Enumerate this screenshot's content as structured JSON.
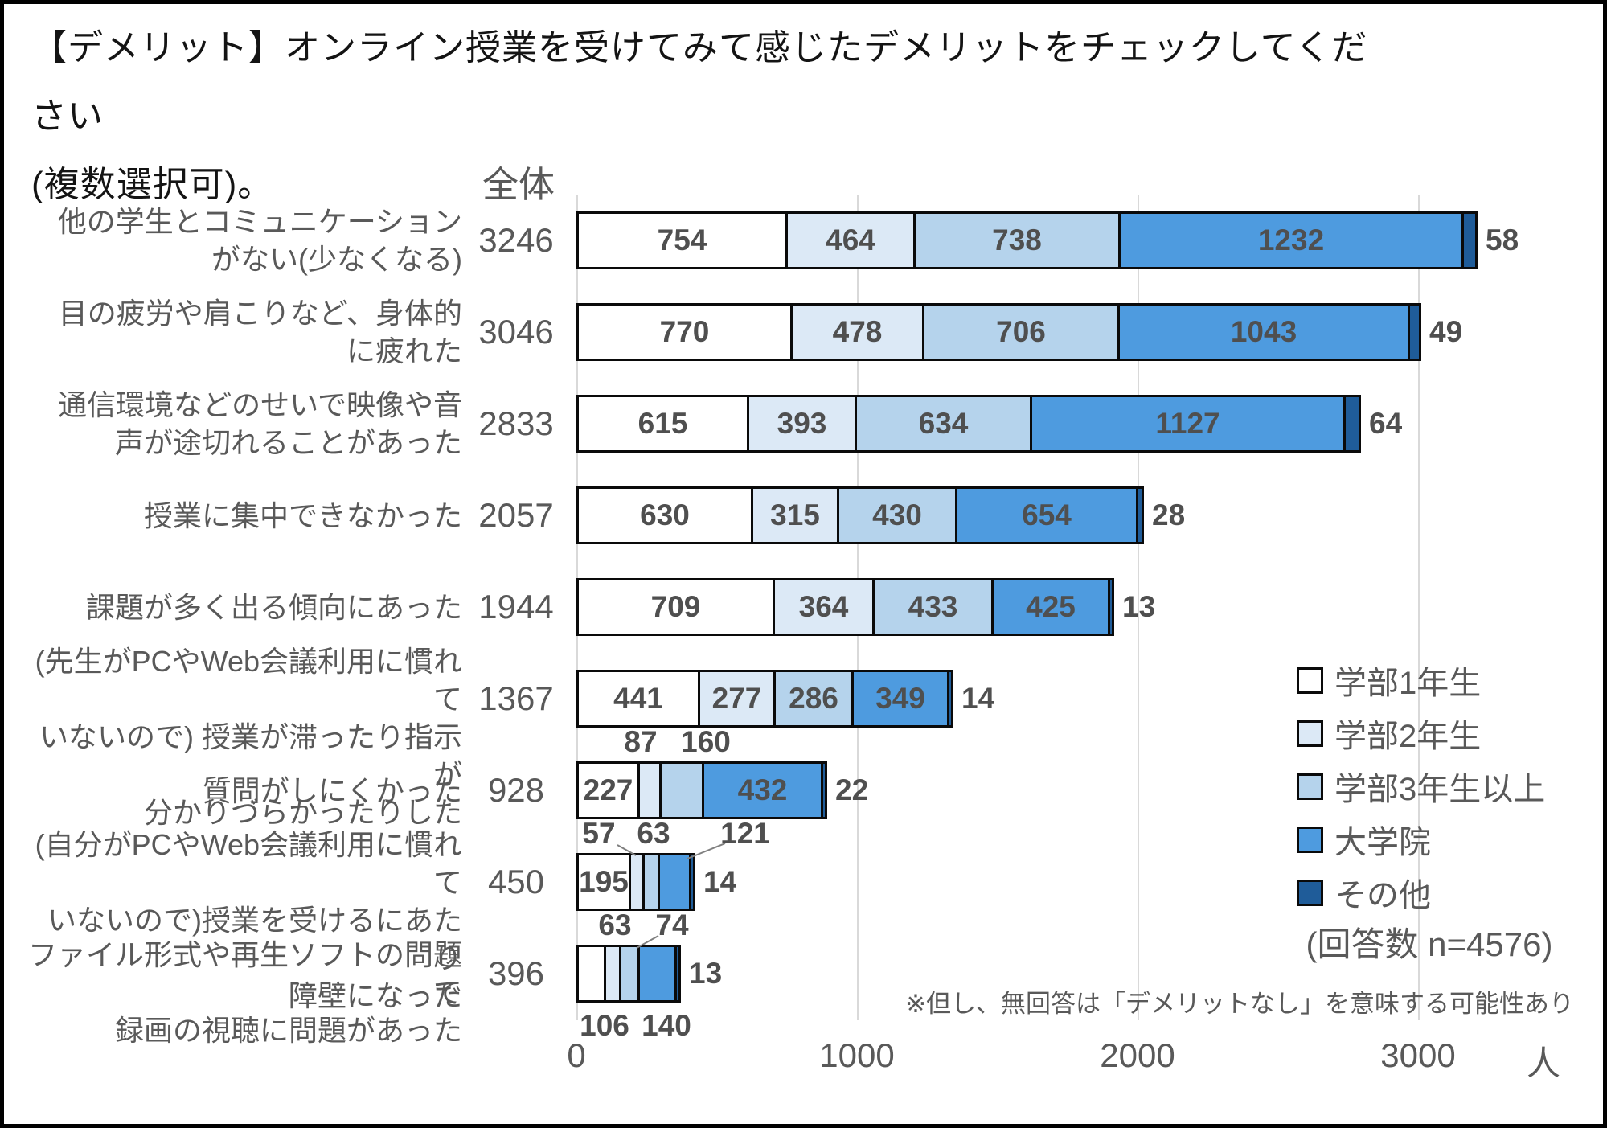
{
  "title_lines": [
    "【デメリット】オンライン授業を受けてみて感じたデメリットをチェックしてください",
    "(複数選択可)。"
  ],
  "chart_data": {
    "type": "bar",
    "orientation": "horizontal",
    "stacked": true,
    "title": "【デメリット】オンライン授業を受けてみて感じたデメリットをチェックしてください(複数選択可)。",
    "total_column_header": "全体",
    "axis_unit": "人",
    "x_ticks": [
      "0",
      "1000",
      "2000",
      "3000"
    ],
    "xlim": [
      0,
      3680
    ],
    "grid": true,
    "legend_position": "right",
    "series_names": [
      "学部1年生",
      "学部2年生",
      "学部3年生以上",
      "大学院",
      "その他"
    ],
    "series_colors": [
      "#ffffff",
      "#dce9f6",
      "#b5d3ec",
      "#4e9bdf",
      "#1f5c99"
    ],
    "rows": [
      {
        "label_lines": [
          "他の学生とコミュニケーション",
          "がない(少なくなる)"
        ],
        "total": 3246,
        "values": [
          754,
          464,
          738,
          1232,
          58
        ]
      },
      {
        "label_lines": [
          "目の疲労や肩こりなど、身体的",
          "に疲れた"
        ],
        "total": 3046,
        "values": [
          770,
          478,
          706,
          1043,
          49
        ]
      },
      {
        "label_lines": [
          "通信環境などのせいで映像や音",
          "声が途切れることがあった"
        ],
        "total": 2833,
        "values": [
          615,
          393,
          634,
          1127,
          64
        ]
      },
      {
        "label_lines": [
          "授業に集中できなかった"
        ],
        "total": 2057,
        "values": [
          630,
          315,
          430,
          654,
          28
        ]
      },
      {
        "label_lines": [
          "課題が多く出る傾向にあった"
        ],
        "total": 1944,
        "values": [
          709,
          364,
          433,
          425,
          13
        ]
      },
      {
        "label_lines": [
          "(先生がPCやWeb会議利用に慣れて",
          "いないので) 授業が滞ったり指示が",
          "分かりづらかったりした"
        ],
        "total": 1367,
        "values": [
          441,
          277,
          286,
          349,
          14
        ]
      },
      {
        "label_lines": [
          "質問がしにくかった"
        ],
        "total": 928,
        "values": [
          227,
          87,
          160,
          432,
          22
        ]
      },
      {
        "label_lines": [
          "(自分がPCやWeb会議利用に慣れて",
          "いないので)授業を受けるにあたり",
          "障壁になった"
        ],
        "total": 450,
        "values": [
          195,
          57,
          63,
          121,
          14
        ]
      },
      {
        "label_lines": [
          "ファイル形式や再生ソフトの問題で",
          "録画の視聴に問題があった"
        ],
        "total": 396,
        "values": [
          106,
          63,
          74,
          140,
          13
        ]
      }
    ],
    "respondents_note": "(回答数 n=4576)",
    "footnote": "※但し、無回答は「デメリットなし」を意味する可能性あり"
  }
}
